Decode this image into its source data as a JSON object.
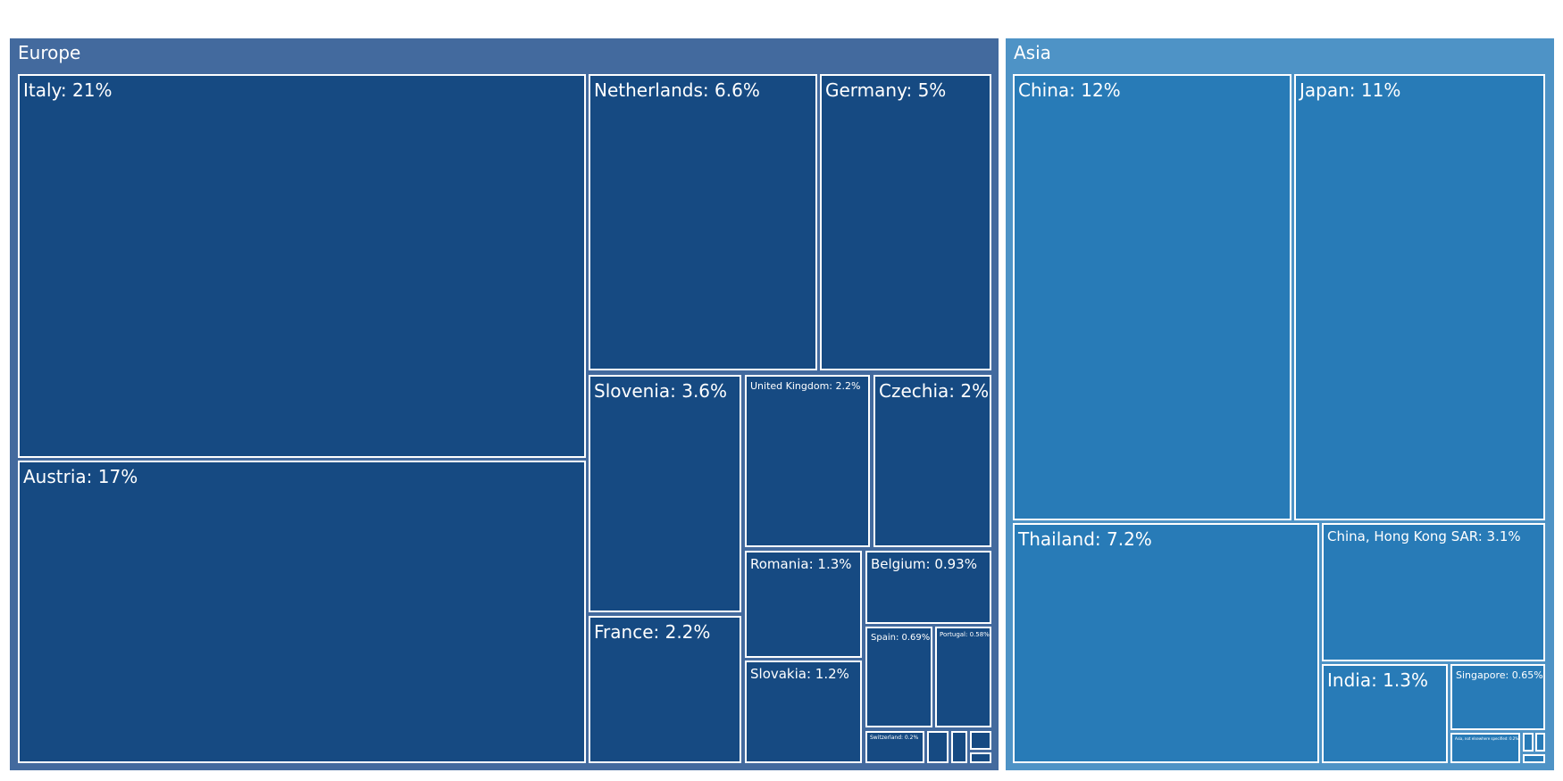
{
  "chart_data": {
    "type": "treemap",
    "title": "",
    "groups": [
      {
        "name": "Europe",
        "color": "#436a9e",
        "cell_color": "#164a82",
        "items": [
          {
            "label": "Italy: 21%",
            "value": 21
          },
          {
            "label": "Austria: 17%",
            "value": 17
          },
          {
            "label": "Netherlands: 6.6%",
            "value": 6.6
          },
          {
            "label": "Germany: 5%",
            "value": 5
          },
          {
            "label": "Slovenia: 3.6%",
            "value": 3.6
          },
          {
            "label": "France: 2.2%",
            "value": 2.2
          },
          {
            "label": "United Kingdom: 2.2%",
            "value": 2.2
          },
          {
            "label": "Czechia: 2%",
            "value": 2
          },
          {
            "label": "Romania: 1.3%",
            "value": 1.3
          },
          {
            "label": "Slovakia: 1.2%",
            "value": 1.2
          },
          {
            "label": "Belgium: 0.93%",
            "value": 0.93
          },
          {
            "label": "Spain: 0.69%",
            "value": 0.69
          },
          {
            "label": "Portugal: 0.58%",
            "value": 0.58
          },
          {
            "label": "Switzerland: 0.2%",
            "value": 0.2
          },
          {
            "label": "",
            "value": 0.15
          },
          {
            "label": "",
            "value": 0.12
          },
          {
            "label": "",
            "value": 0.1
          },
          {
            "label": "",
            "value": 0.05
          }
        ]
      },
      {
        "name": "Asia",
        "color": "#4e93c6",
        "cell_color": "#287bb7",
        "items": [
          {
            "label": "China: 12%",
            "value": 12
          },
          {
            "label": "Japan: 11%",
            "value": 11
          },
          {
            "label": "Thailand: 7.2%",
            "value": 7.2
          },
          {
            "label": "China, Hong Kong SAR: 3.1%",
            "value": 3.1
          },
          {
            "label": "India: 1.3%",
            "value": 1.3
          },
          {
            "label": "Singapore: 0.65%",
            "value": 0.65
          },
          {
            "label": "Asia, not elsewhere specified: 0.2%",
            "value": 0.2
          },
          {
            "label": "",
            "value": 0.06
          },
          {
            "label": "",
            "value": 0.05
          },
          {
            "label": "",
            "value": 0.02
          }
        ]
      }
    ]
  }
}
